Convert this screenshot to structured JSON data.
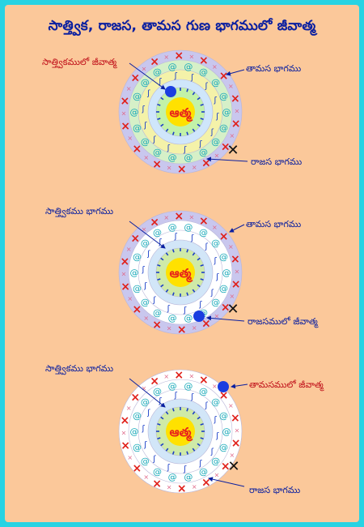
{
  "title": "సాత్త్విక, రాజస, తామస గుణ భాగములో జీవాత్మ",
  "colors": {
    "background": "#fbc89a",
    "border": "#27d3e3",
    "title": "#0a1fa0",
    "label_red": "#c0101a",
    "label_blue": "#0a1fa0",
    "soul_fill": "#ffe100",
    "soul_text": "#e8231b",
    "jiva": "#1a3ee0"
  },
  "diagrams": [
    {
      "atma": "ఆత్మ",
      "jiva_position": "sattva",
      "labels": {
        "sattva": "సాత్త్వికములో జీవాత్మ",
        "tamas": "తామస భాగము",
        "rajas": "రాజస భాగము"
      }
    },
    {
      "atma": "ఆత్మ",
      "jiva_position": "rajas",
      "labels": {
        "sattva": "సాత్త్వికము భాగము",
        "tamas": "తామస భాగము",
        "rajas": "రాజసములో జీవాత్మ"
      }
    },
    {
      "atma": "ఆత్మ",
      "jiva_position": "tamas",
      "labels": {
        "sattva": "సాత్త్వికము భాగము",
        "tamas": "తామసములో జీవాత్మ",
        "rajas": "రాజస భాగము"
      }
    }
  ]
}
